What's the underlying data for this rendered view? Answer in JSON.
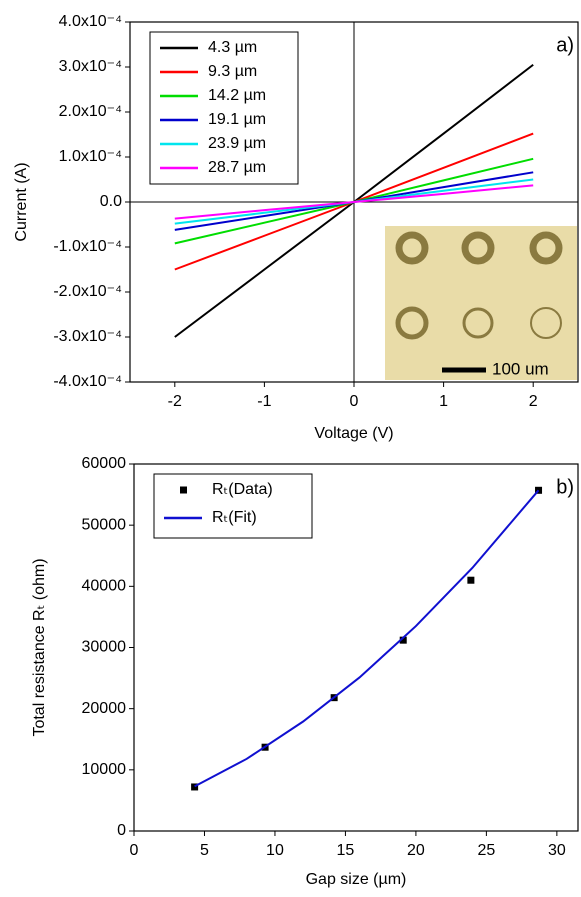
{
  "chart_data": [
    {
      "type": "line",
      "panel_label": "a)",
      "x_label": "Voltage (V)",
      "y_label": "Current (A)",
      "x": [
        -2,
        -1,
        0,
        1,
        2
      ],
      "series": [
        {
          "name": "4.3 µm",
          "color": "#000000",
          "values": [
            -0.0003,
            -0.00015,
            0,
            0.000152,
            0.000305
          ]
        },
        {
          "name": "9.3 µm",
          "color": "#ff0000",
          "values": [
            -0.00015,
            -7.5e-05,
            0,
            7.6e-05,
            0.000152
          ]
        },
        {
          "name": "14.2 µm",
          "color": "#00dd00",
          "values": [
            -9.2e-05,
            -4.6e-05,
            0,
            4.8e-05,
            9.6e-05
          ]
        },
        {
          "name": "19.1 µm",
          "color": "#0000cc",
          "values": [
            -6.2e-05,
            -3.1e-05,
            0,
            3.3e-05,
            6.6e-05
          ]
        },
        {
          "name": "23.9 µm",
          "color": "#00e5ee",
          "values": [
            -4.8e-05,
            -2.4e-05,
            0,
            2.5e-05,
            5e-05
          ]
        },
        {
          "name": "28.7 µm",
          "color": "#ff00ff",
          "values": [
            -3.7e-05,
            -1.8e-05,
            0,
            1.8e-05,
            3.7e-05
          ]
        }
      ],
      "xlim": [
        -2.5,
        2.5
      ],
      "xticks": [
        -2,
        -1,
        0,
        1,
        2
      ],
      "ylim": [
        -0.0004,
        0.0004
      ],
      "yticks": [
        {
          "value": -0.0004,
          "label": "-4.0x10⁻⁴"
        },
        {
          "value": -0.0003,
          "label": "-3.0x10⁻⁴"
        },
        {
          "value": -0.0002,
          "label": "-2.0x10⁻⁴"
        },
        {
          "value": -0.0001,
          "label": "-1.0x10⁻⁴"
        },
        {
          "value": 0,
          "label": "0.0"
        },
        {
          "value": 0.0001,
          "label": "1.0x10⁻⁴"
        },
        {
          "value": 0.0002,
          "label": "2.0x10⁻⁴"
        },
        {
          "value": 0.0003,
          "label": "3.0x10⁻⁴"
        },
        {
          "value": 0.0004,
          "label": "4.0x10⁻⁴"
        }
      ],
      "zero_lines": true,
      "legend": "upper left",
      "inset_label": "100 um"
    },
    {
      "type": "scatter",
      "panel_label": "b)",
      "x_label": "Gap size (µm)",
      "y_label": "Total resistance Rₜ (ohm)",
      "series": [
        {
          "name": "Rₜ(Data)",
          "type": "scatter",
          "color": "#000000",
          "x": [
            4.3,
            9.3,
            14.2,
            19.1,
            23.9,
            28.7
          ],
          "values": [
            7200,
            13700,
            21800,
            31200,
            41000,
            55700
          ]
        },
        {
          "name": "Rₜ(Fit)",
          "type": "line",
          "color": "#1010d0",
          "x": [
            4.3,
            8,
            12,
            16,
            20,
            24,
            28.7
          ],
          "values": [
            7300,
            11800,
            17900,
            25100,
            33500,
            43000,
            55700
          ]
        }
      ],
      "xlim": [
        0,
        31.5
      ],
      "xticks": [
        0,
        5,
        10,
        15,
        20,
        25,
        30
      ],
      "ylim": [
        0,
        60000
      ],
      "yticks": [
        0,
        10000,
        20000,
        30000,
        40000,
        50000,
        60000
      ],
      "legend": "upper left"
    }
  ]
}
